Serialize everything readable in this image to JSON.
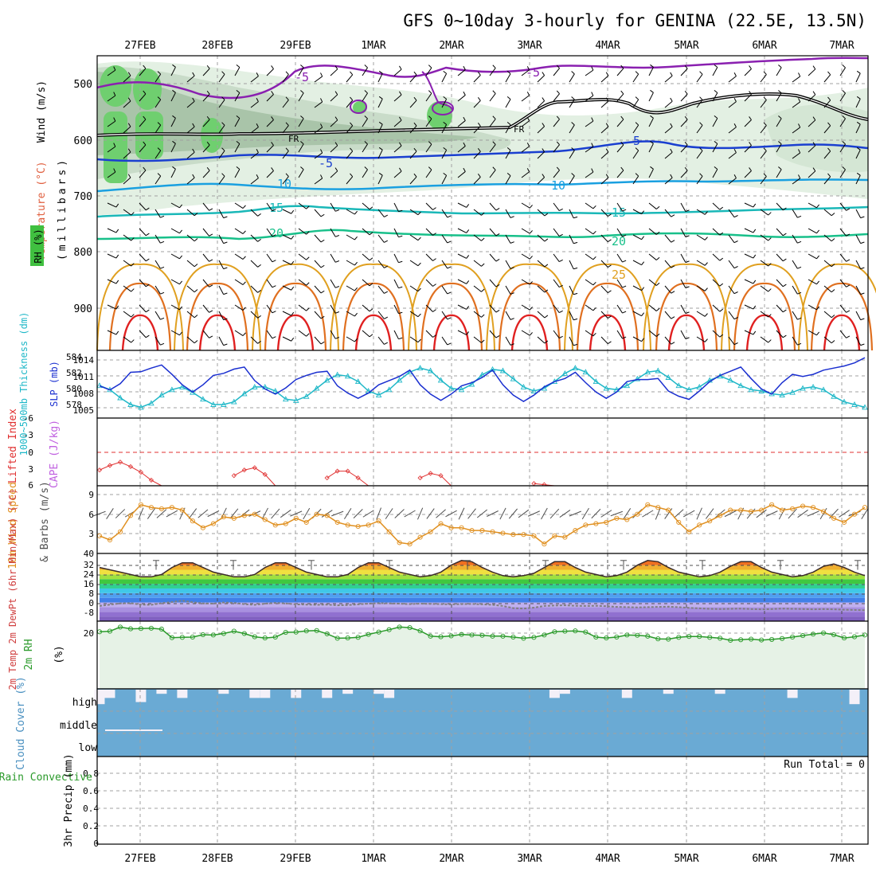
{
  "title": "GFS 0~10day 3-hourly for GENINA (22.5E, 13.5N)",
  "dates": [
    "27FEB",
    "28FEB",
    "29FEB",
    "1MAR",
    "2MAR",
    "3MAR",
    "4MAR",
    "5MAR",
    "6MAR",
    "7MAR"
  ],
  "colors": {
    "frame": "#000000",
    "grid": "#a0a0a0",
    "rh_fill": "#e6f2e6",
    "temp_blue": "#1a3fd0",
    "temp_cyan": "#1aa0e0",
    "temp_teal": "#1ab8b8",
    "temp_green": "#18c08a",
    "temp_orange": "#e0a020",
    "temp_red": "#e02020",
    "purple": "#8a20b0",
    "slp": "#1a2fd0",
    "thickness": "#20b8c8",
    "li": "#e03030",
    "cape": "#c060e0",
    "wind10m": "#e09020",
    "dewpt": "#808080",
    "rh2m": "#2a9a2a",
    "cloud": "#6aaad4",
    "cloud_gap": "#f4f0f8"
  },
  "upper": {
    "ylabel_wind": "Wind (m/s)",
    "ylabel_temp": "Temperature (°C)",
    "ylabel_rh": "RH (%)",
    "ylabel_units": "(millibars)",
    "yticks": [
      "500",
      "600",
      "700",
      "800",
      "900"
    ],
    "contour_labels": [
      {
        "text": "-5",
        "color": "purple"
      },
      {
        "text": "-5",
        "color": "purple"
      },
      {
        "text": "FR",
        "color": "frame"
      },
      {
        "text": "FR",
        "color": "frame"
      },
      {
        "text": "-5",
        "color": "temp_blue"
      },
      {
        "text": "5",
        "color": "temp_blue"
      },
      {
        "text": "10",
        "color": "temp_cyan"
      },
      {
        "text": "10",
        "color": "temp_cyan"
      },
      {
        "text": "15",
        "color": "temp_teal"
      },
      {
        "text": "15",
        "color": "temp_teal"
      },
      {
        "text": "20",
        "color": "temp_green"
      },
      {
        "text": "20",
        "color": "temp_green"
      },
      {
        "text": "25",
        "color": "temp_orange"
      }
    ]
  },
  "panels": {
    "thickness": {
      "ylabel_left": "1000~500mb Thickness (dm)",
      "ylabel_right": "SLP (mb)",
      "left_ticks": [
        "584",
        "582",
        "580",
        "578"
      ],
      "right_ticks": [
        "1014",
        "1011",
        "1008",
        "1005"
      ]
    },
    "stability": {
      "ylabel_left": "Lifted Index",
      "ylabel_right": "CAPE (J/kg)",
      "ticks": [
        "-6",
        "-3",
        "0",
        "3",
        "6"
      ]
    },
    "wind10m": {
      "ylabel_left": "10m Wind Speed",
      "ylabel_right": "& Barbs (m/s)",
      "ticks": [
        "9",
        "6",
        "3"
      ]
    },
    "temp2m": {
      "ylabel": "2m Temp 2m DewPt (6hr Min/Max) (°C)",
      "ticks": [
        "40",
        "32",
        "24",
        "16",
        "8",
        "0",
        "-8"
      ]
    },
    "rh2m": {
      "ylabel": "2m RH",
      "units": "(%)",
      "ticks": [
        "20"
      ]
    },
    "cloud": {
      "ylabel": "Cloud Cover (%)",
      "levels": [
        "high",
        "middle",
        "low"
      ]
    },
    "precip": {
      "ylabel_left": "Total / Rain Convective",
      "ylabel_right": "3hr Precip (mm)",
      "ticks": [
        "0.8",
        "0.6",
        "0.4",
        "0.2",
        "0"
      ],
      "run_total": "Run Total = 0"
    }
  },
  "chart_data": {
    "type": "line",
    "x_labels": [
      "27FEB",
      "28FEB",
      "29FEB",
      "1MAR",
      "2MAR",
      "3MAR",
      "4MAR",
      "5MAR",
      "6MAR",
      "7MAR"
    ],
    "thickness_dm": [
      580.8,
      580.2,
      579.0,
      578.0,
      577.6,
      578.2,
      579.4,
      580.2,
      580.6,
      579.8,
      578.8,
      578.0,
      578.0,
      578.4,
      579.6,
      580.6,
      580.6,
      580.0,
      578.8,
      578.6,
      579.2,
      580.4,
      581.6,
      582.4,
      582.2,
      581.4,
      580.0,
      579.4,
      580.2,
      581.6,
      582.8,
      583.4,
      583.0,
      581.6,
      580.4,
      580.2,
      581.0,
      582.4,
      583.2,
      583.0,
      581.8,
      580.6,
      580.0,
      580.4,
      581.4,
      582.6,
      583.4,
      582.8,
      581.4,
      580.4,
      580.2,
      580.8,
      581.8,
      582.8,
      583.0,
      582.0,
      580.8,
      580.2,
      580.6,
      581.6,
      582.2,
      581.6,
      580.8,
      580.2,
      580.0,
      579.6,
      579.4,
      579.8,
      580.4,
      580.6,
      580.2,
      579.2,
      578.4,
      578.0,
      577.6
    ],
    "slp_mb": [
      1009.2,
      1008.4,
      1009.6,
      1011.8,
      1011.9,
      1012.6,
      1013.2,
      1011.4,
      1009.4,
      1008.0,
      1009.4,
      1011.2,
      1011.6,
      1012.4,
      1012.8,
      1010.2,
      1008.6,
      1007.6,
      1008.8,
      1010.4,
      1011.2,
      1011.8,
      1012.0,
      1009.2,
      1007.8,
      1006.8,
      1007.8,
      1009.4,
      1010.2,
      1011.0,
      1012.2,
      1009.4,
      1007.6,
      1006.4,
      1007.6,
      1009.2,
      1009.8,
      1010.8,
      1012.2,
      1009.4,
      1007.4,
      1006.2,
      1007.4,
      1009.0,
      1010.0,
      1010.6,
      1011.8,
      1009.8,
      1008.0,
      1006.8,
      1008.0,
      1010.0,
      1010.4,
      1010.4,
      1010.6,
      1008.2,
      1007.2,
      1006.6,
      1008.2,
      1010.0,
      1011.2,
      1012.0,
      1012.8,
      1010.6,
      1008.6,
      1007.6,
      1009.8,
      1011.4,
      1011.0,
      1011.4,
      1012.2,
      1012.6,
      1013.0,
      1013.6,
      1014.6
    ],
    "lifted_index": [
      3.2,
      2.4,
      1.8,
      2.6,
      3.6,
      5.0,
      6.0,
      6.0,
      6.0,
      6.0,
      6.0,
      6.0,
      6.0,
      4.2,
      3.2,
      2.8,
      4.0,
      6.0,
      6.0,
      6.0,
      6.0,
      6.0,
      4.6,
      3.4,
      3.4,
      4.6,
      6.0,
      6.0,
      6.0,
      6.0,
      6.0,
      4.6,
      3.8,
      4.2,
      6.0,
      6.0,
      6.0,
      6.0,
      6.0,
      6.0,
      6.0,
      6.0,
      5.6,
      5.8,
      6.0,
      6.0,
      6.0,
      6.0,
      6.0,
      6.0,
      6.0,
      6.0,
      6.0,
      6.0,
      6.0,
      6.0,
      6.0,
      6.0,
      6.0,
      6.0,
      6.0,
      6.0,
      6.0,
      6.0,
      6.0,
      6.0,
      6.0,
      6.0,
      6.0,
      6.0,
      6.0,
      6.0,
      6.0,
      6.0,
      6.0
    ],
    "wind10m_ms": [
      2.6,
      2.0,
      3.2,
      5.6,
      7.2,
      6.8,
      6.6,
      6.8,
      6.4,
      4.8,
      3.8,
      4.4,
      5.4,
      5.2,
      5.6,
      5.8,
      5.0,
      4.2,
      4.4,
      5.2,
      4.6,
      5.8,
      5.6,
      4.6,
      4.2,
      4.0,
      4.2,
      4.8,
      3.2,
      1.6,
      1.4,
      2.4,
      3.2,
      4.4,
      3.8,
      3.8,
      3.4,
      3.4,
      3.2,
      3.0,
      2.8,
      2.8,
      2.6,
      1.4,
      2.6,
      2.4,
      3.4,
      4.2,
      4.4,
      4.6,
      5.2,
      5.0,
      5.8,
      7.2,
      6.8,
      6.4,
      4.6,
      3.2,
      4.2,
      4.8,
      5.6,
      6.4,
      6.4,
      6.2,
      6.4,
      7.2,
      6.4,
      6.6,
      7.0,
      6.8,
      6.2,
      5.2,
      4.6,
      5.8,
      6.8
    ],
    "temp2m_c": [
      30,
      28,
      26,
      24,
      22,
      22,
      24,
      30,
      34,
      34,
      30,
      26,
      24,
      22,
      22,
      24,
      30,
      34,
      34,
      30,
      26,
      24,
      22,
      22,
      24,
      30,
      34,
      34,
      30,
      26,
      24,
      22,
      23,
      26,
      32,
      36,
      35,
      30,
      26,
      23,
      22,
      23,
      25,
      30,
      35,
      35,
      30,
      26,
      24,
      22,
      23,
      26,
      32,
      36,
      35,
      30,
      26,
      24,
      22,
      23,
      26,
      31,
      35,
      35,
      30,
      26,
      24,
      22,
      23,
      26,
      31,
      33,
      30,
      26,
      23
    ],
    "dewpt2m_c": [
      -3.0,
      -1.8,
      -0.8,
      -0.6,
      -1.8,
      -2.0,
      -0.6,
      0.4,
      1.6,
      0.2,
      -0.8,
      -1.0,
      0.0,
      -0.4,
      -1.4,
      -2.0,
      -1.0,
      -0.4,
      -0.8,
      -1.6,
      -1.8,
      -2.0,
      -1.8,
      -2.4,
      -2.2,
      -1.6,
      -1.0,
      -0.6,
      -0.8,
      -1.0,
      -1.4,
      -1.0,
      -1.2,
      -1.4,
      -1.6,
      -1.4,
      -1.2,
      -1.6,
      -2.0,
      -3.0,
      -4.8,
      -5.2,
      -4.4,
      -3.0,
      -2.6,
      -2.4,
      -2.8,
      -3.0,
      -2.8,
      -3.2,
      -3.8,
      -4.0,
      -4.2,
      -4.0,
      -3.8,
      -3.6,
      -4.0,
      -4.6,
      -5.0,
      -5.4,
      -5.6,
      -5.4,
      -5.2,
      -5.6,
      -5.8,
      -5.6,
      -5.2,
      -5.4,
      -5.6,
      -5.8,
      -5.6,
      -5.8,
      -6.2,
      -6.4,
      -6.6
    ],
    "rh2m_pct": [
      19.4,
      19.6,
      21.0,
      20.4,
      20.5,
      20.6,
      20.3,
      17.4,
      17.5,
      17.6,
      18.4,
      18.3,
      18.8,
      19.6,
      18.8,
      17.7,
      17.3,
      17.6,
      19.2,
      19.3,
      19.7,
      19.8,
      18.7,
      17.2,
      17.3,
      17.5,
      18.5,
      19.3,
      20.1,
      21.0,
      20.8,
      19.7,
      17.9,
      17.7,
      18.0,
      18.5,
      18.3,
      18.2,
      17.9,
      17.9,
      17.6,
      17.2,
      17.5,
      18.3,
      19.4,
      19.6,
      19.7,
      19.3,
      17.6,
      17.3,
      17.6,
      18.3,
      18.2,
      17.9,
      17.0,
      16.9,
      17.5,
      17.8,
      17.8,
      17.5,
      17.2,
      16.5,
      16.7,
      16.9,
      16.6,
      16.8,
      17.1,
      17.6,
      18.1,
      18.6,
      19.0,
      18.4,
      17.3,
      17.7,
      18.3
    ],
    "cloud_high_pct": [
      30,
      60,
      100,
      100,
      40,
      100,
      80,
      100,
      60,
      100,
      100,
      100,
      80,
      100,
      100,
      60,
      60,
      100,
      100,
      60,
      100,
      100,
      60,
      100,
      80,
      100,
      100,
      80,
      60,
      100,
      100,
      100,
      100,
      100,
      100,
      100,
      100,
      100,
      100,
      100,
      100,
      100,
      100,
      100,
      60,
      80,
      100,
      100,
      100,
      100,
      100,
      60,
      100,
      100,
      100,
      80,
      100,
      100,
      100,
      100,
      80,
      100,
      100,
      100,
      100,
      100,
      100,
      60,
      100,
      100,
      100,
      100,
      100,
      30,
      100
    ],
    "precip_3hr_mm": [
      0,
      0,
      0,
      0,
      0,
      0,
      0,
      0,
      0,
      0
    ],
    "ylim_pressure": [
      450,
      990
    ],
    "ylim_thickness": [
      576,
      586
    ],
    "ylim_slp": [
      1003,
      1016
    ],
    "ylim_li": [
      -6,
      6
    ],
    "ylim_wind": [
      0,
      10
    ],
    "ylim_temp2m": [
      -16,
      42
    ],
    "ylim_rh2m": [
      0,
      23
    ],
    "ylim_precip": [
      0,
      1
    ]
  }
}
